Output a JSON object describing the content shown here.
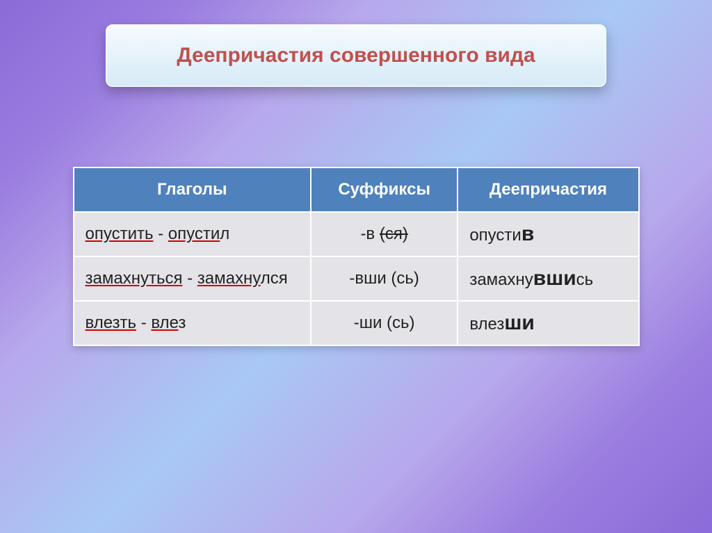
{
  "slide": {
    "title": "Деепричастия совершенного вида",
    "title_color": "#c0504d",
    "title_fontsize": 30,
    "title_bg_gradient": [
      "#f5fbfe",
      "#d6eaf7"
    ],
    "background_gradient": [
      "#8b6bd8",
      "#9a7de0",
      "#b8a8ec",
      "#a8c8f5",
      "#b8a8ec",
      "#9a7de0",
      "#8b6bd8"
    ]
  },
  "table": {
    "type": "table",
    "header_bg": "#4f81bd",
    "header_color": "#ffffff",
    "cell_bg": "#e4e3e8",
    "cell_color": "#222222",
    "border_color": "#ffffff",
    "header_fontsize": 24,
    "cell_fontsize": 24,
    "columns": [
      {
        "label": "Глаголы",
        "key": "verb",
        "width_pct": 42,
        "align": "left"
      },
      {
        "label": "Суффиксы",
        "key": "suffix",
        "width_pct": 26,
        "align": "center"
      },
      {
        "label": "Деепричастия",
        "key": "deeprichastie",
        "width_pct": 32,
        "align": "left"
      }
    ],
    "rows": [
      {
        "verb": {
          "word1": "опустить",
          "dash": " - ",
          "word2": "опусти",
          "word2_tail": "л"
        },
        "suffix": {
          "pre": "-в ",
          "paren": "(ся)",
          "paren_strike": true
        },
        "dee": {
          "stem": "опусти",
          "suf": "в",
          "tail": ""
        }
      },
      {
        "verb": {
          "word1": "замахнуться",
          "dash": " - ",
          "word2": "замахну",
          "word2_tail": "лся"
        },
        "suffix": {
          "pre": "-вши ",
          "paren": "(сь)",
          "paren_strike": false
        },
        "dee": {
          "stem": "замахну",
          "suf": "вши",
          "tail": "сь"
        }
      },
      {
        "verb": {
          "word1": "влезть",
          "dash": " - ",
          "word2": "вле",
          "word2_tail": "з"
        },
        "suffix": {
          "pre": "-ши ",
          "paren": "(сь)",
          "paren_strike": false
        },
        "dee": {
          "stem": "влез",
          "suf": "ши",
          "tail": ""
        }
      }
    ]
  }
}
